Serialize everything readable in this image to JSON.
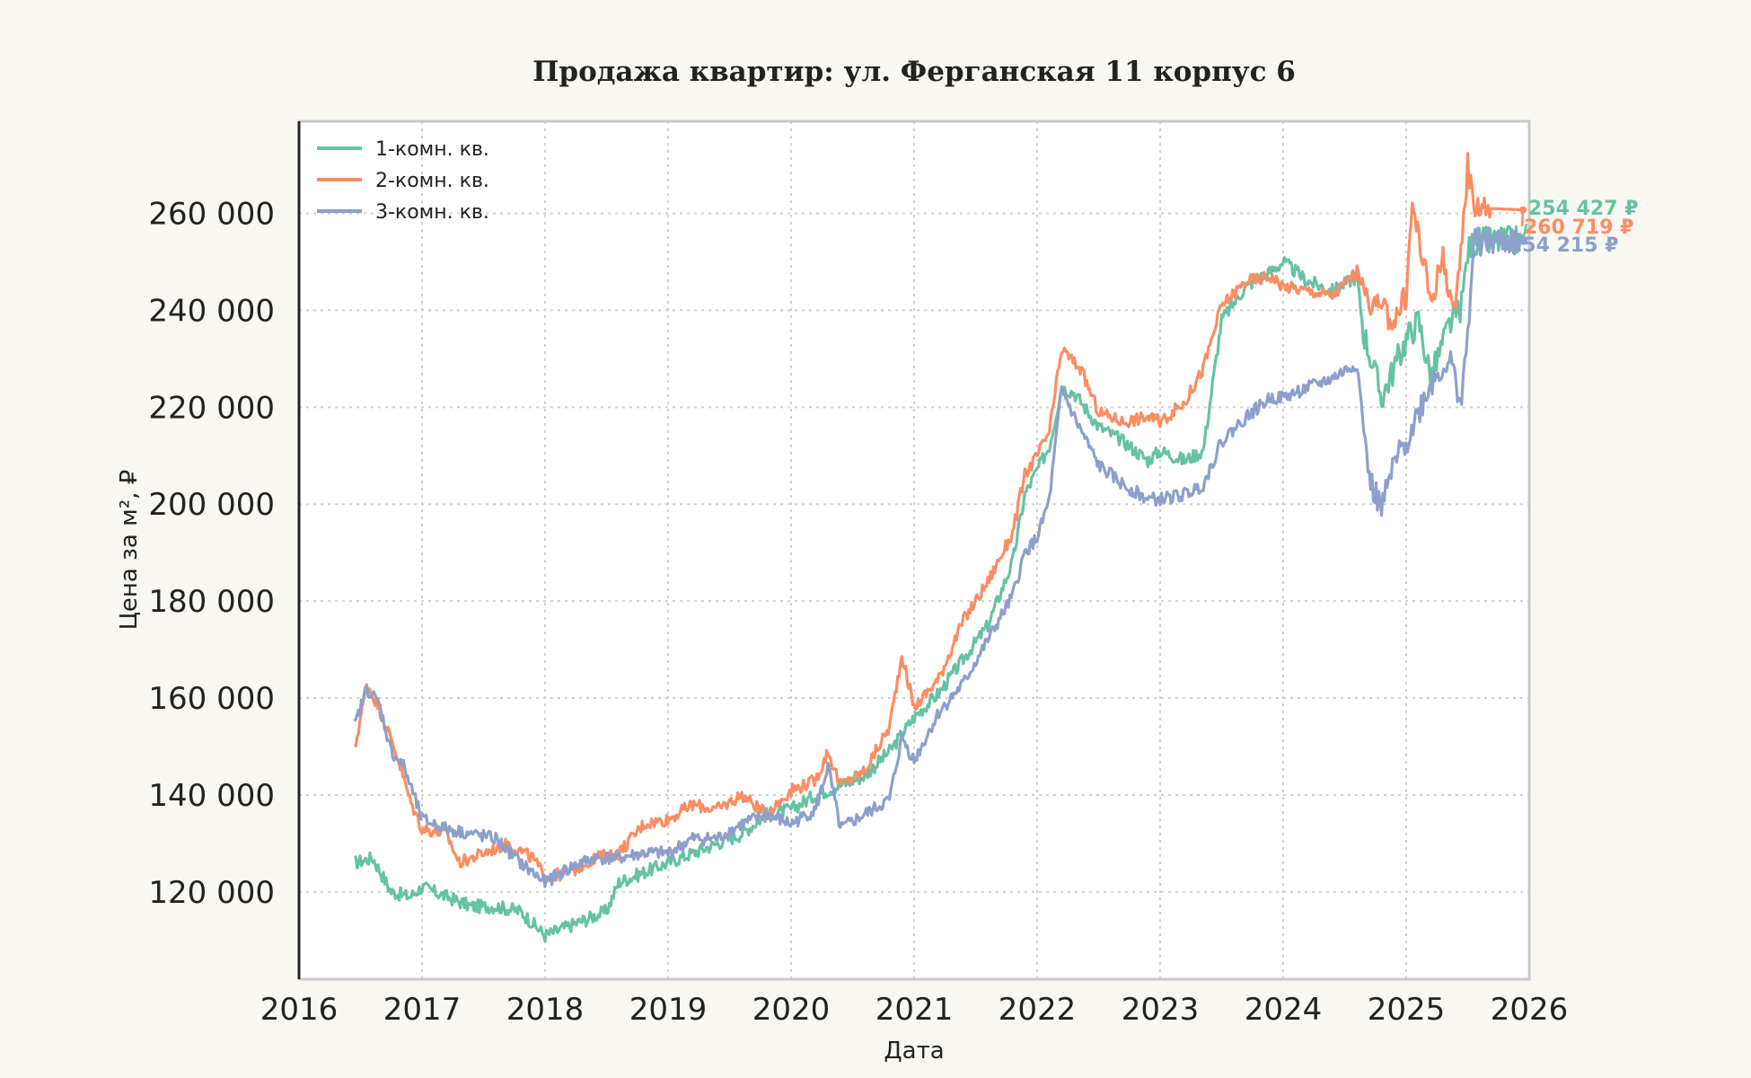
{
  "chart_data": {
    "type": "line",
    "title": "Продажа квартир: ул. Ферганская 11 корпус 6",
    "xlabel": "Дата",
    "ylabel": "Цена за м², ₽",
    "xlim": [
      2016.0,
      2026.0
    ],
    "ylim": [
      102000,
      279000
    ],
    "x_ticks": [
      2016,
      2017,
      2018,
      2019,
      2020,
      2021,
      2022,
      2023,
      2024,
      2025,
      2026
    ],
    "y_ticks": [
      120000,
      140000,
      160000,
      180000,
      200000,
      220000,
      240000,
      260000
    ],
    "y_tick_labels": [
      "120 000",
      "140 000",
      "160 000",
      "180 000",
      "200 000",
      "220 000",
      "240 000",
      "260 000"
    ],
    "grid": true,
    "legend": "top-left",
    "series": [
      {
        "name": "1-комн. кв.",
        "color": "#66c2a5",
        "end_label": "254 427 ₽",
        "points": [
          [
            2016.45,
            126000
          ],
          [
            2016.6,
            127000
          ],
          [
            2016.75,
            120000
          ],
          [
            2016.9,
            119000
          ],
          [
            2017.0,
            121000
          ],
          [
            2017.2,
            119000
          ],
          [
            2017.4,
            117000
          ],
          [
            2017.6,
            117000
          ],
          [
            2017.8,
            116000
          ],
          [
            2018.0,
            111000
          ],
          [
            2018.1,
            112000
          ],
          [
            2018.3,
            114000
          ],
          [
            2018.5,
            116000
          ],
          [
            2018.6,
            122000
          ],
          [
            2018.8,
            124000
          ],
          [
            2019.0,
            126000
          ],
          [
            2019.2,
            128000
          ],
          [
            2019.4,
            130000
          ],
          [
            2019.6,
            132000
          ],
          [
            2019.8,
            136000
          ],
          [
            2020.0,
            137000
          ],
          [
            2020.2,
            140000
          ],
          [
            2020.4,
            142000
          ],
          [
            2020.6,
            144000
          ],
          [
            2020.8,
            149000
          ],
          [
            2021.0,
            156000
          ],
          [
            2021.2,
            161000
          ],
          [
            2021.4,
            168000
          ],
          [
            2021.6,
            175000
          ],
          [
            2021.8,
            188000
          ],
          [
            2021.9,
            202000
          ],
          [
            2022.0,
            207000
          ],
          [
            2022.1,
            212000
          ],
          [
            2022.2,
            224000
          ],
          [
            2022.3,
            223000
          ],
          [
            2022.5,
            216000
          ],
          [
            2022.7,
            213000
          ],
          [
            2022.9,
            209000
          ],
          [
            2023.0,
            211000
          ],
          [
            2023.2,
            209000
          ],
          [
            2023.35,
            211000
          ],
          [
            2023.5,
            238000
          ],
          [
            2023.7,
            245000
          ],
          [
            2023.9,
            248000
          ],
          [
            2024.0,
            250000
          ],
          [
            2024.2,
            246000
          ],
          [
            2024.4,
            244000
          ],
          [
            2024.6,
            247000
          ],
          [
            2024.65,
            236000
          ],
          [
            2024.8,
            222000
          ],
          [
            2024.9,
            228000
          ],
          [
            2025.0,
            234000
          ],
          [
            2025.1,
            238000
          ],
          [
            2025.2,
            226000
          ],
          [
            2025.35,
            237000
          ],
          [
            2025.45,
            241000
          ],
          [
            2025.5,
            252000
          ],
          [
            2025.55,
            254000
          ],
          [
            2025.95,
            254427
          ]
        ]
      },
      {
        "name": "2-комн. кв.",
        "color": "#fc8d62",
        "end_label": "260 719 ₽",
        "points": [
          [
            2016.45,
            149000
          ],
          [
            2016.55,
            163000
          ],
          [
            2016.65,
            158000
          ],
          [
            2016.8,
            148000
          ],
          [
            2016.9,
            139000
          ],
          [
            2017.0,
            133000
          ],
          [
            2017.2,
            132000
          ],
          [
            2017.3,
            126000
          ],
          [
            2017.5,
            128000
          ],
          [
            2017.7,
            130000
          ],
          [
            2017.9,
            127000
          ],
          [
            2018.0,
            123000
          ],
          [
            2018.2,
            124000
          ],
          [
            2018.4,
            127000
          ],
          [
            2018.6,
            128000
          ],
          [
            2018.8,
            134000
          ],
          [
            2019.0,
            135000
          ],
          [
            2019.2,
            138000
          ],
          [
            2019.4,
            137000
          ],
          [
            2019.6,
            140000
          ],
          [
            2019.8,
            136000
          ],
          [
            2020.0,
            141000
          ],
          [
            2020.2,
            143000
          ],
          [
            2020.3,
            149000
          ],
          [
            2020.4,
            142000
          ],
          [
            2020.6,
            145000
          ],
          [
            2020.8,
            154000
          ],
          [
            2020.9,
            169000
          ],
          [
            2021.0,
            158000
          ],
          [
            2021.2,
            164000
          ],
          [
            2021.4,
            176000
          ],
          [
            2021.6,
            184000
          ],
          [
            2021.8,
            194000
          ],
          [
            2021.9,
            206000
          ],
          [
            2022.0,
            210000
          ],
          [
            2022.1,
            215000
          ],
          [
            2022.2,
            232000
          ],
          [
            2022.35,
            228000
          ],
          [
            2022.5,
            219000
          ],
          [
            2022.7,
            217000
          ],
          [
            2022.9,
            218000
          ],
          [
            2023.0,
            217000
          ],
          [
            2023.2,
            221000
          ],
          [
            2023.35,
            228000
          ],
          [
            2023.5,
            241000
          ],
          [
            2023.7,
            246000
          ],
          [
            2023.9,
            247000
          ],
          [
            2024.0,
            245000
          ],
          [
            2024.2,
            244000
          ],
          [
            2024.4,
            243000
          ],
          [
            2024.6,
            248000
          ],
          [
            2024.7,
            242000
          ],
          [
            2024.9,
            238000
          ],
          [
            2025.0,
            243000
          ],
          [
            2025.05,
            262000
          ],
          [
            2025.2,
            242000
          ],
          [
            2025.3,
            251000
          ],
          [
            2025.4,
            238000
          ],
          [
            2025.5,
            270000
          ],
          [
            2025.55,
            262000
          ],
          [
            2025.7,
            261000
          ],
          [
            2025.95,
            260719
          ]
        ]
      },
      {
        "name": "3-комн. кв.",
        "color": "#8da0cb",
        "end_label": "254 215 ₽",
        "points": [
          [
            2016.45,
            154000
          ],
          [
            2016.55,
            162000
          ],
          [
            2016.65,
            159000
          ],
          [
            2016.75,
            149000
          ],
          [
            2016.85,
            146000
          ],
          [
            2017.0,
            135000
          ],
          [
            2017.2,
            133000
          ],
          [
            2017.4,
            132000
          ],
          [
            2017.6,
            131000
          ],
          [
            2017.8,
            126000
          ],
          [
            2018.0,
            122000
          ],
          [
            2018.2,
            125000
          ],
          [
            2018.4,
            127000
          ],
          [
            2018.6,
            127000
          ],
          [
            2018.8,
            128000
          ],
          [
            2019.0,
            128000
          ],
          [
            2019.2,
            131000
          ],
          [
            2019.4,
            131000
          ],
          [
            2019.6,
            134000
          ],
          [
            2019.8,
            136000
          ],
          [
            2020.0,
            134000
          ],
          [
            2020.2,
            137000
          ],
          [
            2020.3,
            146000
          ],
          [
            2020.4,
            133000
          ],
          [
            2020.6,
            136000
          ],
          [
            2020.8,
            139000
          ],
          [
            2020.9,
            152000
          ],
          [
            2021.0,
            147000
          ],
          [
            2021.2,
            157000
          ],
          [
            2021.4,
            163000
          ],
          [
            2021.6,
            172000
          ],
          [
            2021.8,
            181000
          ],
          [
            2021.9,
            190000
          ],
          [
            2022.0,
            193000
          ],
          [
            2022.1,
            201000
          ],
          [
            2022.2,
            224000
          ],
          [
            2022.3,
            218000
          ],
          [
            2022.5,
            208000
          ],
          [
            2022.7,
            204000
          ],
          [
            2022.9,
            201000
          ],
          [
            2023.0,
            201000
          ],
          [
            2023.2,
            202000
          ],
          [
            2023.35,
            204000
          ],
          [
            2023.5,
            213000
          ],
          [
            2023.7,
            218000
          ],
          [
            2023.9,
            222000
          ],
          [
            2024.0,
            222000
          ],
          [
            2024.2,
            224000
          ],
          [
            2024.4,
            226000
          ],
          [
            2024.6,
            229000
          ],
          [
            2024.7,
            205000
          ],
          [
            2024.8,
            199000
          ],
          [
            2024.9,
            208000
          ],
          [
            2025.0,
            213000
          ],
          [
            2025.2,
            225000
          ],
          [
            2025.35,
            230000
          ],
          [
            2025.45,
            221000
          ],
          [
            2025.5,
            235000
          ],
          [
            2025.55,
            254000
          ],
          [
            2025.95,
            254215
          ]
        ]
      }
    ]
  }
}
